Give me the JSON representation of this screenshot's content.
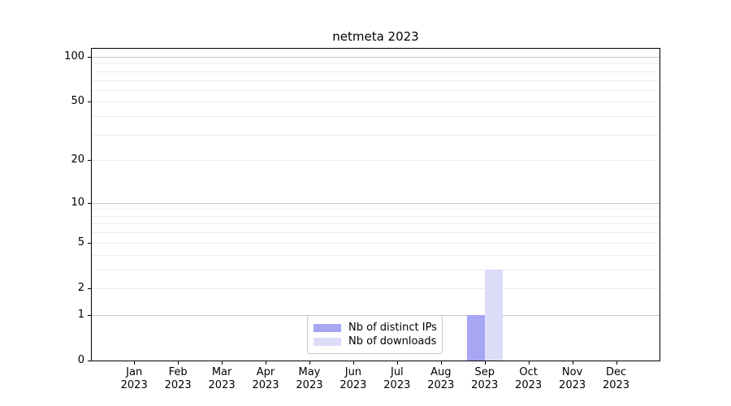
{
  "chart_data": {
    "type": "bar",
    "title": "netmeta 2023",
    "categories": [
      "Jan",
      "Feb",
      "Mar",
      "Apr",
      "May",
      "Jun",
      "Jul",
      "Aug",
      "Sep",
      "Oct",
      "Nov",
      "Dec"
    ],
    "category_year": "2023",
    "series": [
      {
        "name": "Nb of distinct IPs",
        "color": "#a6a6f2",
        "values": [
          0,
          0,
          0,
          0,
          0,
          0,
          0,
          0,
          1,
          0,
          0,
          0
        ]
      },
      {
        "name": "Nb of downloads",
        "color": "#dcdcf8",
        "values": [
          0,
          0,
          0,
          0,
          0,
          0,
          0,
          0,
          3,
          0,
          0,
          0
        ]
      }
    ],
    "yscale": "log1p",
    "ylim": [
      0,
      113.3
    ],
    "ytick_labels": [
      "0",
      "1",
      "2",
      "5",
      "10",
      "20",
      "50",
      "100"
    ],
    "ytick_values": [
      0,
      1,
      2,
      5,
      10,
      20,
      50,
      100
    ],
    "grid_major_values": [
      1,
      10,
      100
    ],
    "grid_minor_values": [
      2,
      3,
      4,
      5,
      6,
      7,
      8,
      9,
      20,
      30,
      40,
      50,
      60,
      70,
      80,
      90
    ],
    "legend_position": "lower center inside",
    "colors": {
      "grid_major": "#c8c8c8",
      "grid_minor": "#ececec",
      "spine": "#000000",
      "text": "#000000",
      "legend_border": "#c9c9c9",
      "background": "#ffffff"
    }
  }
}
